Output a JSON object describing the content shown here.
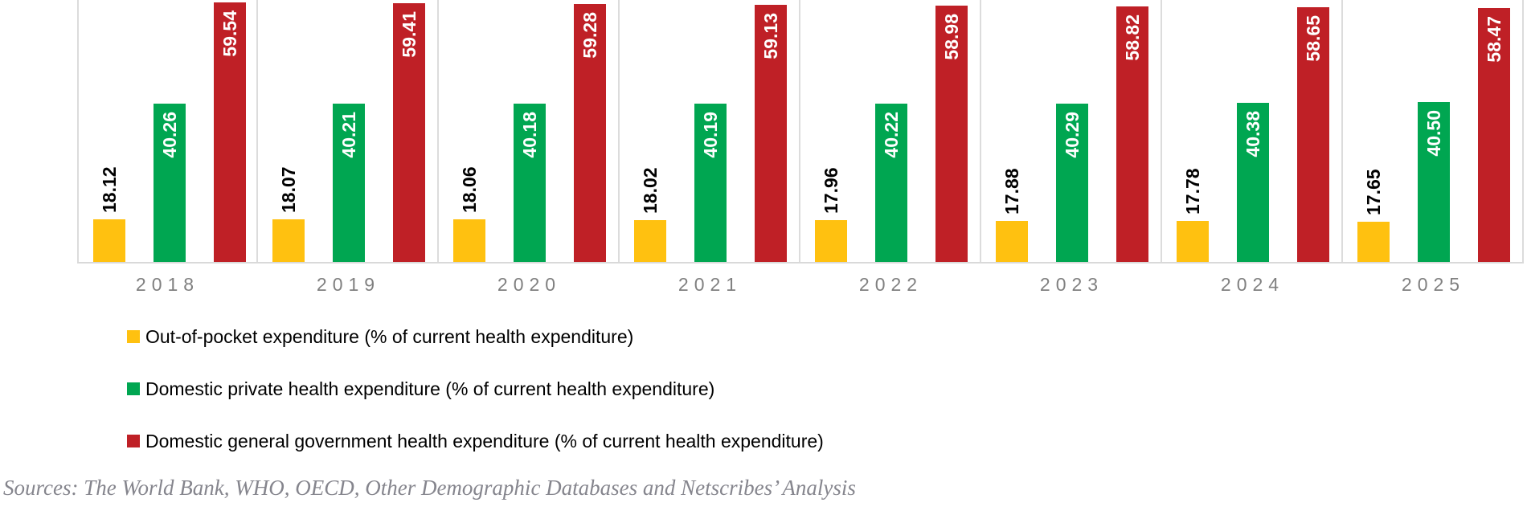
{
  "chart_data": {
    "type": "bar",
    "title": "",
    "categories": [
      "2018",
      "2019",
      "2020",
      "2021",
      "2022",
      "2023",
      "2024",
      "2025"
    ],
    "series": [
      {
        "name": "Out-of-pocket expenditure (% of current health expenditure)",
        "color": "#FFC110",
        "label_color": "#000000",
        "label_placement": "above",
        "values": [
          18.12,
          18.07,
          18.06,
          18.02,
          17.96,
          17.88,
          17.78,
          17.65
        ],
        "labels": [
          "18.12",
          "18.07",
          "18.06",
          "18.02",
          "17.96",
          "17.88",
          "17.78",
          "17.65"
        ]
      },
      {
        "name": "Domestic private health expenditure (% of current health expenditure)",
        "color": "#00A651",
        "label_color": "#FFFFFF",
        "label_placement": "inside",
        "values": [
          40.26,
          40.21,
          40.18,
          40.19,
          40.22,
          40.29,
          40.38,
          40.5
        ],
        "labels": [
          "40.26",
          "40.21",
          "40.18",
          "40.19",
          "40.22",
          "40.29",
          "40.38",
          "40.50"
        ]
      },
      {
        "name": "Domestic general government health expenditure (% of current health expenditure)",
        "color": "#BF2026",
        "label_color": "#FFFFFF",
        "label_placement": "inside",
        "values": [
          59.54,
          59.41,
          59.28,
          59.13,
          58.98,
          58.82,
          58.65,
          58.47
        ],
        "labels": [
          "59.54",
          "59.41",
          "59.28",
          "59.13",
          "58.98",
          "58.82",
          "58.65",
          "58.47"
        ]
      }
    ],
    "xlabel": "",
    "ylabel": "",
    "ylim": [
      10,
      60
    ],
    "grid": "vertical-category-separators",
    "legend_position": "bottom-left",
    "axis_tick_color": "#808080",
    "separator_color": "#DCDCDC"
  },
  "source_note": "Sources: The World Bank, WHO, OECD, Other Demographic Databases and Netscribes’ Analysis"
}
